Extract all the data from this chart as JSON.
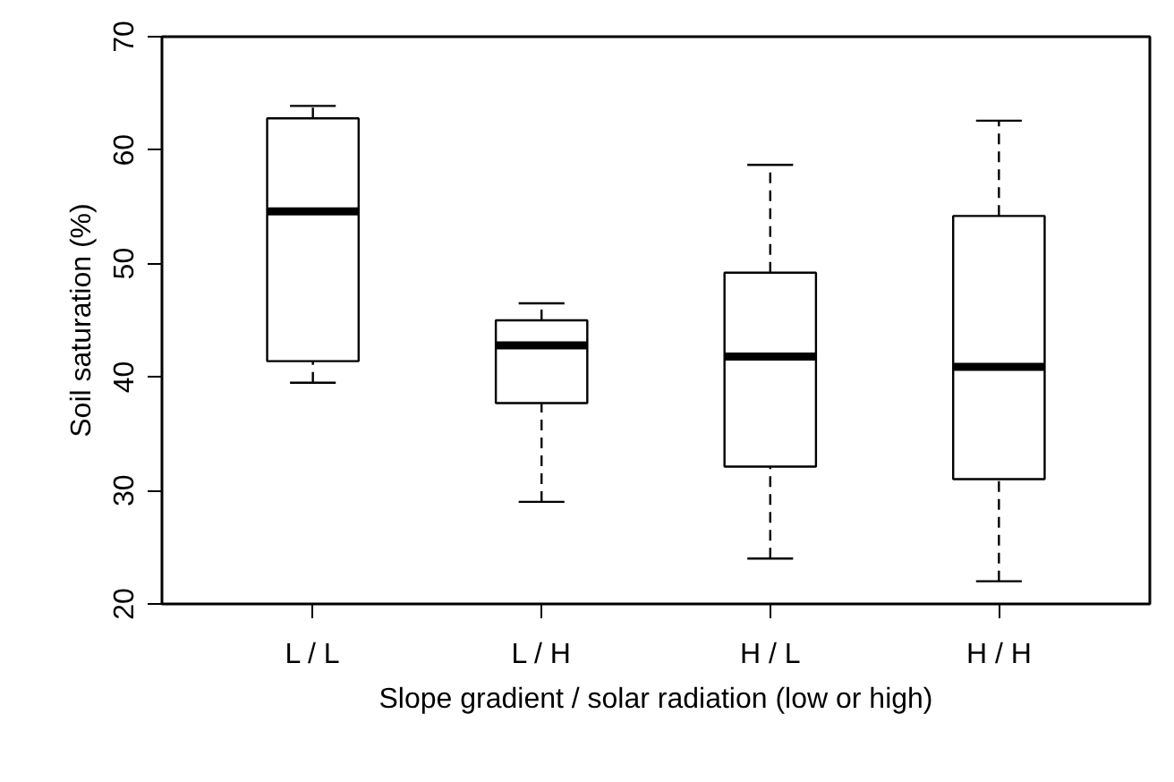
{
  "chart_data": {
    "type": "box",
    "xlabel": "Slope gradient / solar radiation (low or high)",
    "ylabel": "Soil saturation (%)",
    "categories": [
      "L / L",
      "L / H",
      "H / L",
      "H / H"
    ],
    "boxes": [
      {
        "low": 39.5,
        "q1": 41.4,
        "median": 54.6,
        "q3": 62.8,
        "high": 63.9
      },
      {
        "low": 29,
        "q1": 37.7,
        "median": 42.8,
        "q3": 45,
        "high": 46.5
      },
      {
        "low": 24,
        "q1": 32.1,
        "median": 41.8,
        "q3": 49.2,
        "high": 58.7
      },
      {
        "low": 22,
        "q1": 31,
        "median": 40.9,
        "q3": 54.2,
        "high": 62.6
      }
    ],
    "color": "#ffffff",
    "ylim": [
      20,
      70
    ],
    "yticks": [
      20,
      30,
      40,
      50,
      60,
      70
    ],
    "grid": false,
    "line_style": "dashed"
  }
}
